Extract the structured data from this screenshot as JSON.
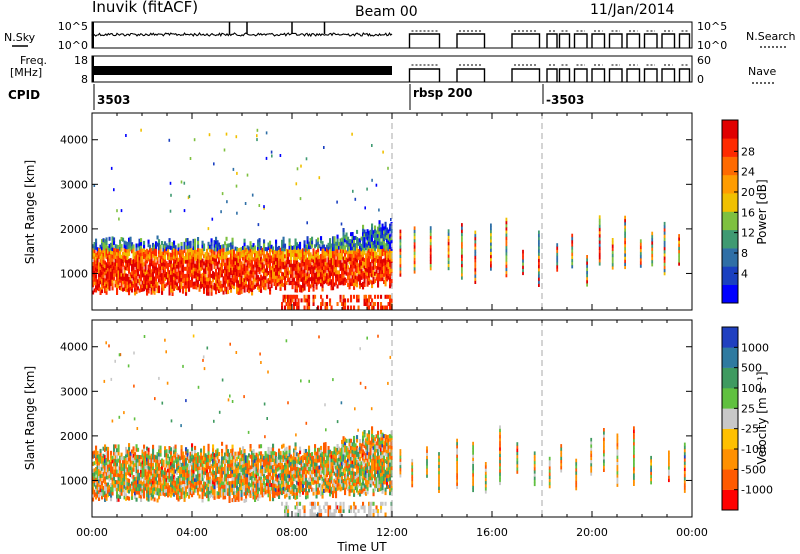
{
  "header": {
    "station": "Inuvik (fitACF)",
    "beam": "Beam 00",
    "date": "11/Jan/2014"
  },
  "top_panels": {
    "nsky": {
      "label": "N.Sky",
      "ticks_left": [
        "10^5",
        "10^0"
      ],
      "ticks_right": [
        "10^5",
        "10^0"
      ],
      "right_label": "N.Search"
    },
    "freq": {
      "label_line1": "Freq.",
      "label_line2": "[MHz]",
      "ticks_left": [
        "18",
        "8"
      ],
      "ticks_right": [
        "60",
        "0"
      ],
      "right_label": "Nave"
    },
    "cpid": {
      "label": "CPID",
      "segments": [
        {
          "text": "3503",
          "start_hour": 0.0
        },
        {
          "text": "rbsp 200",
          "start_hour": 12.0
        },
        {
          "text": "-3503",
          "start_hour": 18.0
        }
      ]
    }
  },
  "x_axis": {
    "label": "Time UT",
    "ticks": [
      "00:00",
      "04:00",
      "08:00",
      "12:00",
      "16:00",
      "20:00",
      "00:00"
    ],
    "range_hours": [
      0,
      24
    ]
  },
  "chart_data": [
    {
      "type": "heatmap",
      "name": "power",
      "ylabel": "Slant Range [km]",
      "yticks": [
        1000,
        2000,
        3000,
        4000
      ],
      "ylim": [
        180,
        4600
      ],
      "xlim": [
        0,
        24
      ],
      "colorbar": {
        "label": "Power [dB]",
        "ticks": [
          "28",
          "24",
          "20",
          "16",
          "12",
          "8",
          "4"
        ],
        "colors": [
          "#0000ff",
          "#1a40c0",
          "#2f6fa6",
          "#3f9a72",
          "#7ec040",
          "#f0c000",
          "#ff9c00",
          "#ff6a00",
          "#ff2a00",
          "#e00000"
        ]
      }
    },
    {
      "type": "heatmap",
      "name": "velocity",
      "ylabel": "Slant Range [km]",
      "yticks": [
        1000,
        2000,
        3000,
        4000
      ],
      "ylim": [
        180,
        4600
      ],
      "xlim": [
        0,
        24
      ],
      "colorbar": {
        "label": "Velocity [m s⁻¹]",
        "ticks": [
          "1000",
          "500",
          "100",
          "25",
          "-25",
          "-100",
          "-500",
          "-1000"
        ],
        "colors": [
          "#2040c0",
          "#2f7aa0",
          "#3f9a60",
          "#60c040",
          "#c8c8c8",
          "#ffc000",
          "#ff9000",
          "#ff5a00",
          "#ff0000"
        ]
      }
    }
  ]
}
